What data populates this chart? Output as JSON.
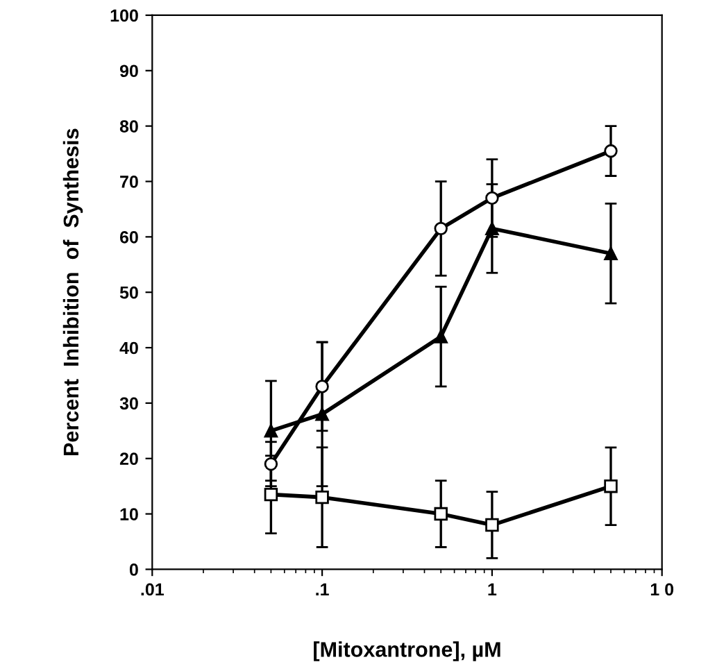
{
  "chart_data": {
    "type": "line",
    "xlabel": "[Mitoxantrone], µM",
    "ylabel": "Percent  Inhibition  of  Synthesis",
    "log": "x",
    "x": [
      0.05,
      0.1,
      0.5,
      1,
      5
    ],
    "series": [
      {
        "color": "#000000",
        "marker": "circle",
        "values": [
          19,
          33,
          61.5,
          67,
          75.5
        ],
        "errors": [
          4,
          8,
          8.5,
          7,
          4.5
        ]
      },
      {
        "color": "#000000",
        "marker": "triangle",
        "values": [
          25,
          28,
          42,
          61.5,
          57
        ],
        "errors": [
          9,
          13,
          9,
          8,
          9
        ]
      },
      {
        "color": "#000000",
        "marker": "square",
        "values": [
          13.5,
          13,
          10,
          8,
          15
        ],
        "errors": [
          7,
          9,
          6,
          6,
          7
        ]
      }
    ],
    "xlim": [
      0.01,
      10
    ],
    "xticks": [
      {
        "value": 0.01,
        "label": ".01"
      },
      {
        "value": 0.1,
        "label": ".1"
      },
      1,
      {
        "value": 10,
        "label": "1 0"
      }
    ],
    "ylim": [
      0,
      100
    ],
    "yticks": [
      0,
      10,
      20,
      30,
      40,
      50,
      60,
      70,
      80,
      90,
      100
    ],
    "grid": false,
    "line_style": "solid"
  }
}
